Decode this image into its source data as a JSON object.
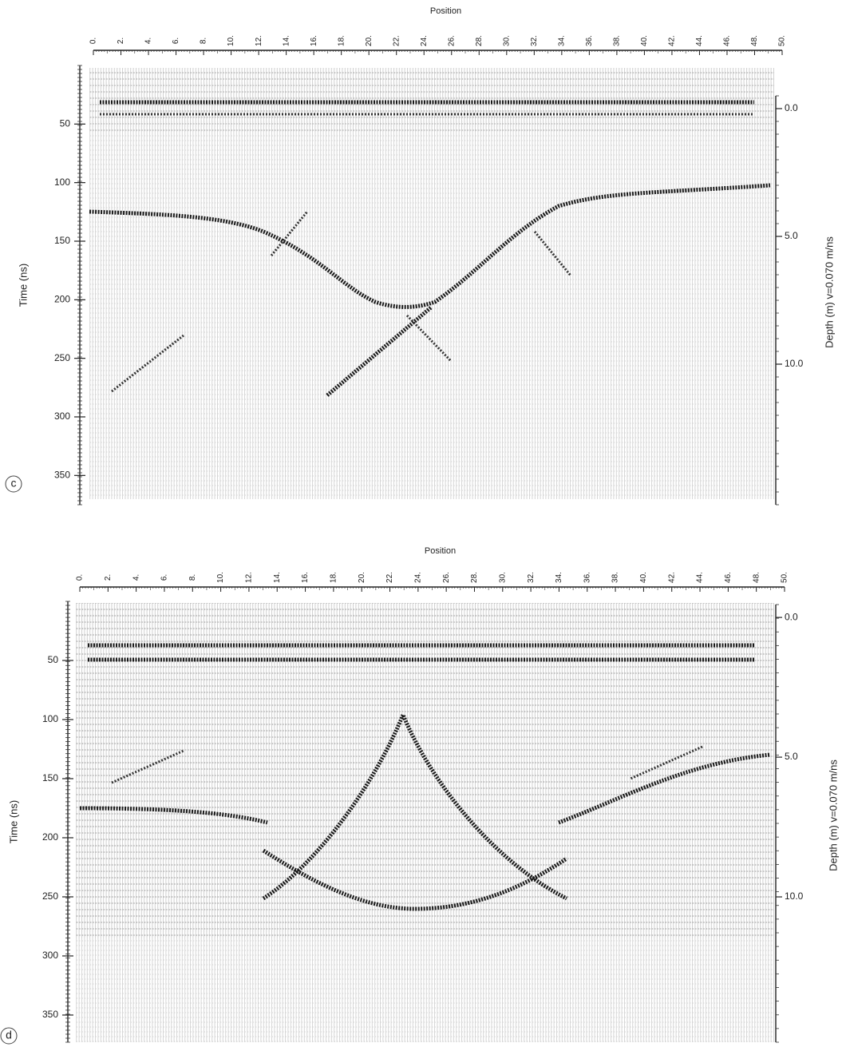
{
  "chart_data": [
    {
      "type": "radargram",
      "panel_label": "c",
      "x_label": "Position",
      "y_label": "Time (ns)",
      "y2_label": "Depth (m) v=0.070 m/ns",
      "xlim": [
        0,
        50
      ],
      "ylim": [
        0,
        375
      ],
      "y2lim": [
        -0.5,
        15.5
      ],
      "xticks": [
        {
          "value": 0,
          "label": "0."
        },
        {
          "value": 2,
          "label": "2."
        },
        {
          "value": 4,
          "label": "4."
        },
        {
          "value": 6,
          "label": "6."
        },
        {
          "value": 8,
          "label": "8."
        },
        {
          "value": 10,
          "label": "10."
        },
        {
          "value": 12,
          "label": "12."
        },
        {
          "value": 14,
          "label": "14."
        },
        {
          "value": 16,
          "label": "16."
        },
        {
          "value": 18,
          "label": "18."
        },
        {
          "value": 20,
          "label": "20."
        },
        {
          "value": 22,
          "label": "22."
        },
        {
          "value": 24,
          "label": "24."
        },
        {
          "value": 26,
          "label": "26."
        },
        {
          "value": 28,
          "label": "28."
        },
        {
          "value": 30,
          "label": "30."
        },
        {
          "value": 32,
          "label": "32."
        },
        {
          "value": 34,
          "label": "34."
        },
        {
          "value": 36,
          "label": "36."
        },
        {
          "value": 38,
          "label": "38."
        },
        {
          "value": 40,
          "label": "40."
        },
        {
          "value": 42,
          "label": "42."
        },
        {
          "value": 44,
          "label": "44."
        },
        {
          "value": 46,
          "label": "46."
        },
        {
          "value": 48,
          "label": "48."
        },
        {
          "value": 50,
          "label": "50."
        }
      ],
      "yticks": [
        50,
        100,
        150,
        200,
        250,
        300,
        350
      ],
      "y2ticks": [
        {
          "value": 0,
          "label": "0.0"
        },
        {
          "value": 5,
          "label": "5.0"
        },
        {
          "value": 10,
          "label": "10.0"
        }
      ]
    },
    {
      "type": "radargram",
      "panel_label": "d",
      "x_label": "Position",
      "y_label": "Time (ns)",
      "y2_label": "Depth (m) v=0.070 m/ns",
      "xlim": [
        0,
        50
      ],
      "ylim": [
        0,
        373
      ],
      "y2lim": [
        -0.46,
        15.2
      ],
      "xticks": [
        {
          "value": 0,
          "label": "0."
        },
        {
          "value": 2,
          "label": "2."
        },
        {
          "value": 4,
          "label": "4."
        },
        {
          "value": 6,
          "label": "6."
        },
        {
          "value": 8,
          "label": "8."
        },
        {
          "value": 10,
          "label": "10."
        },
        {
          "value": 12,
          "label": "12."
        },
        {
          "value": 14,
          "label": "14."
        },
        {
          "value": 16,
          "label": "16."
        },
        {
          "value": 18,
          "label": "18."
        },
        {
          "value": 20,
          "label": "20."
        },
        {
          "value": 22,
          "label": "22."
        },
        {
          "value": 24,
          "label": "24."
        },
        {
          "value": 26,
          "label": "26."
        },
        {
          "value": 28,
          "label": "28."
        },
        {
          "value": 30,
          "label": "30."
        },
        {
          "value": 32,
          "label": "32."
        },
        {
          "value": 34,
          "label": "34."
        },
        {
          "value": 36,
          "label": "36."
        },
        {
          "value": 38,
          "label": "38."
        },
        {
          "value": 40,
          "label": "40."
        },
        {
          "value": 42,
          "label": "42."
        },
        {
          "value": 44,
          "label": "44."
        },
        {
          "value": 46,
          "label": "46."
        },
        {
          "value": 48,
          "label": "48."
        },
        {
          "value": 50,
          "label": "50."
        }
      ],
      "yticks": [
        50,
        100,
        150,
        200,
        250,
        300,
        350
      ],
      "y2ticks": [
        {
          "value": 0,
          "label": "0.0"
        },
        {
          "value": 5,
          "label": "5.0"
        },
        {
          "value": 10,
          "label": "10.0"
        }
      ]
    }
  ]
}
